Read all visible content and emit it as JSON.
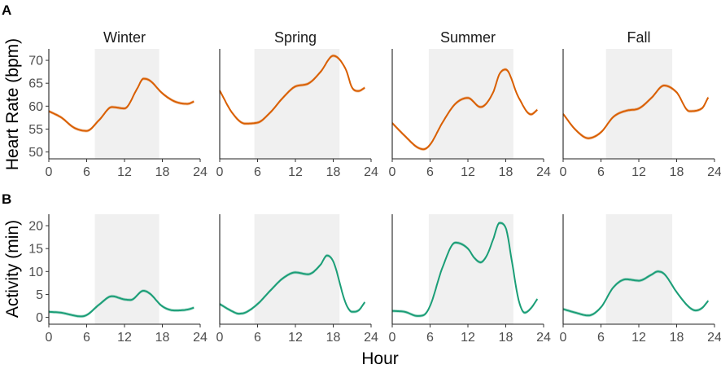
{
  "panel_labels": [
    "A",
    "B"
  ],
  "x_axis_label": "Hour",
  "colors": {
    "heart_rate": "#d95f02",
    "activity": "#1b9e77",
    "daylight_shade": "#f0f0f0"
  },
  "chart_data": [
    {
      "type": "line",
      "panel": "A",
      "ylabel": "Heart Rate (bpm)",
      "xlim": [
        0,
        24
      ],
      "ylim": [
        48.5,
        72.5
      ],
      "xticks": [
        0,
        6,
        12,
        18,
        24
      ],
      "yticks": [
        50,
        55,
        60,
        65,
        70
      ],
      "grid": false,
      "facets": [
        {
          "title": "Winter",
          "shade": [
            7.3,
            17.5
          ],
          "x": [
            0,
            2,
            4,
            6,
            8,
            10,
            12,
            14,
            15,
            16,
            18,
            20,
            22,
            23
          ],
          "values": [
            58.9,
            57.5,
            55.3,
            54.6,
            57,
            59.8,
            59.5,
            63.8,
            66,
            65.6,
            62.8,
            61,
            60.5,
            61
          ]
        },
        {
          "title": "Spring",
          "shade": [
            5.5,
            19
          ],
          "x": [
            0,
            2,
            4,
            6,
            8,
            10,
            12,
            14,
            16,
            18,
            20,
            21,
            22,
            23
          ],
          "values": [
            63.4,
            58.5,
            56.2,
            56.4,
            58.6,
            61.8,
            64.3,
            64.9,
            67.5,
            71,
            68,
            64,
            63.3,
            64
          ]
        },
        {
          "title": "Summer",
          "shade": [
            5.8,
            19.2
          ],
          "x": [
            0,
            2,
            4,
            5,
            6,
            8,
            10,
            12,
            14,
            16,
            17,
            18,
            20,
            22,
            23
          ],
          "values": [
            56.3,
            53.5,
            51,
            50.6,
            51.6,
            56.5,
            60.5,
            61.8,
            59.8,
            63,
            67,
            68,
            62,
            58.2,
            59.2
          ]
        },
        {
          "title": "Fall",
          "shade": [
            6.8,
            17.3
          ],
          "x": [
            0,
            2,
            4,
            6,
            8,
            10,
            12,
            14,
            16,
            18,
            20,
            22,
            23
          ],
          "values": [
            58.3,
            54.8,
            53,
            54.3,
            57.7,
            59,
            59.5,
            61.8,
            64.5,
            63,
            58.9,
            59.5,
            61.9
          ]
        }
      ]
    },
    {
      "type": "line",
      "panel": "B",
      "ylabel": "Activity (min)",
      "xlim": [
        0,
        24
      ],
      "ylim": [
        -1.5,
        22.5
      ],
      "xticks": [
        0,
        6,
        12,
        18,
        24
      ],
      "yticks": [
        0,
        5,
        10,
        15,
        20
      ],
      "grid": false,
      "facets": [
        {
          "title": "Winter",
          "shade": [
            7.3,
            17.5
          ],
          "x": [
            0,
            2,
            4,
            5,
            6,
            8,
            10,
            12,
            13,
            15,
            16,
            18,
            20,
            22,
            23
          ],
          "values": [
            1.2,
            1,
            0.4,
            0.2,
            0.5,
            2.8,
            4.6,
            3.9,
            3.8,
            5.8,
            5.2,
            2.4,
            1.5,
            1.7,
            2.1
          ]
        },
        {
          "title": "Spring",
          "shade": [
            5.5,
            19
          ],
          "x": [
            0,
            2,
            3,
            4,
            6,
            8,
            10,
            12,
            14,
            16,
            17,
            18,
            20,
            21,
            22,
            23
          ],
          "values": [
            2.9,
            1.3,
            0.8,
            1,
            2.9,
            5.8,
            8.5,
            9.8,
            9.4,
            11.5,
            13.5,
            12.2,
            3,
            1.2,
            1.5,
            3.3
          ]
        },
        {
          "title": "Summer",
          "shade": [
            5.8,
            19.2
          ],
          "x": [
            0,
            2,
            4,
            5,
            6,
            8,
            10,
            12,
            13,
            14,
            15,
            16,
            17,
            18,
            19,
            20,
            21,
            22,
            23
          ],
          "values": [
            1.4,
            1.2,
            0.3,
            0.5,
            2.5,
            11,
            16.3,
            15,
            13,
            12,
            13.5,
            17,
            20.6,
            19.5,
            12,
            4,
            1,
            2,
            4
          ]
        },
        {
          "title": "Fall",
          "shade": [
            6.8,
            17.3
          ],
          "x": [
            0,
            2,
            4,
            6,
            8,
            10,
            12,
            14,
            15,
            16,
            18,
            20,
            21,
            22,
            23
          ],
          "values": [
            1.8,
            1,
            0.4,
            2.2,
            6.6,
            8.3,
            8,
            9.3,
            10,
            9.5,
            5.5,
            2.2,
            1.5,
            2,
            3.6
          ]
        }
      ]
    }
  ]
}
